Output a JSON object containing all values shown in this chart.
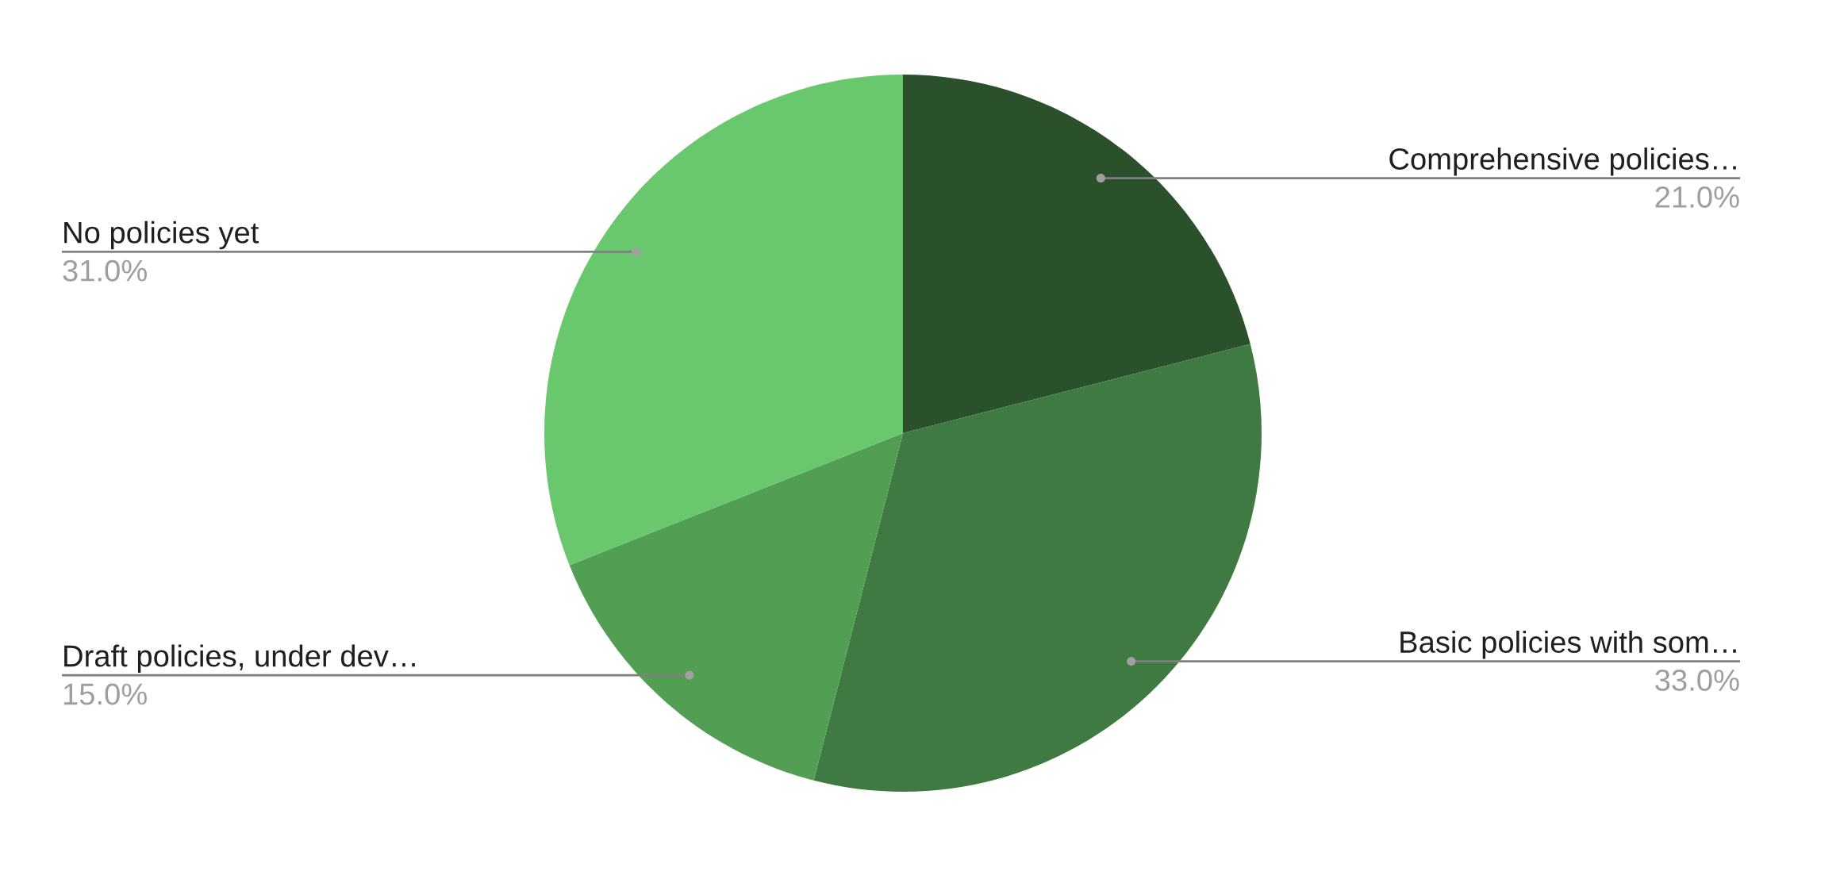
{
  "chart_data": {
    "type": "pie",
    "categories": [
      "Comprehensive policies…",
      "Basic policies with som…",
      "Draft policies, under dev…",
      "No policies yet"
    ],
    "values": [
      21,
      33,
      15,
      31
    ],
    "colors": [
      "#2a502c",
      "#3e7a42",
      "#529f54",
      "#69c76e"
    ],
    "value_labels": [
      "21.0%",
      "33.0%",
      "15.0%",
      "31.0%"
    ]
  }
}
